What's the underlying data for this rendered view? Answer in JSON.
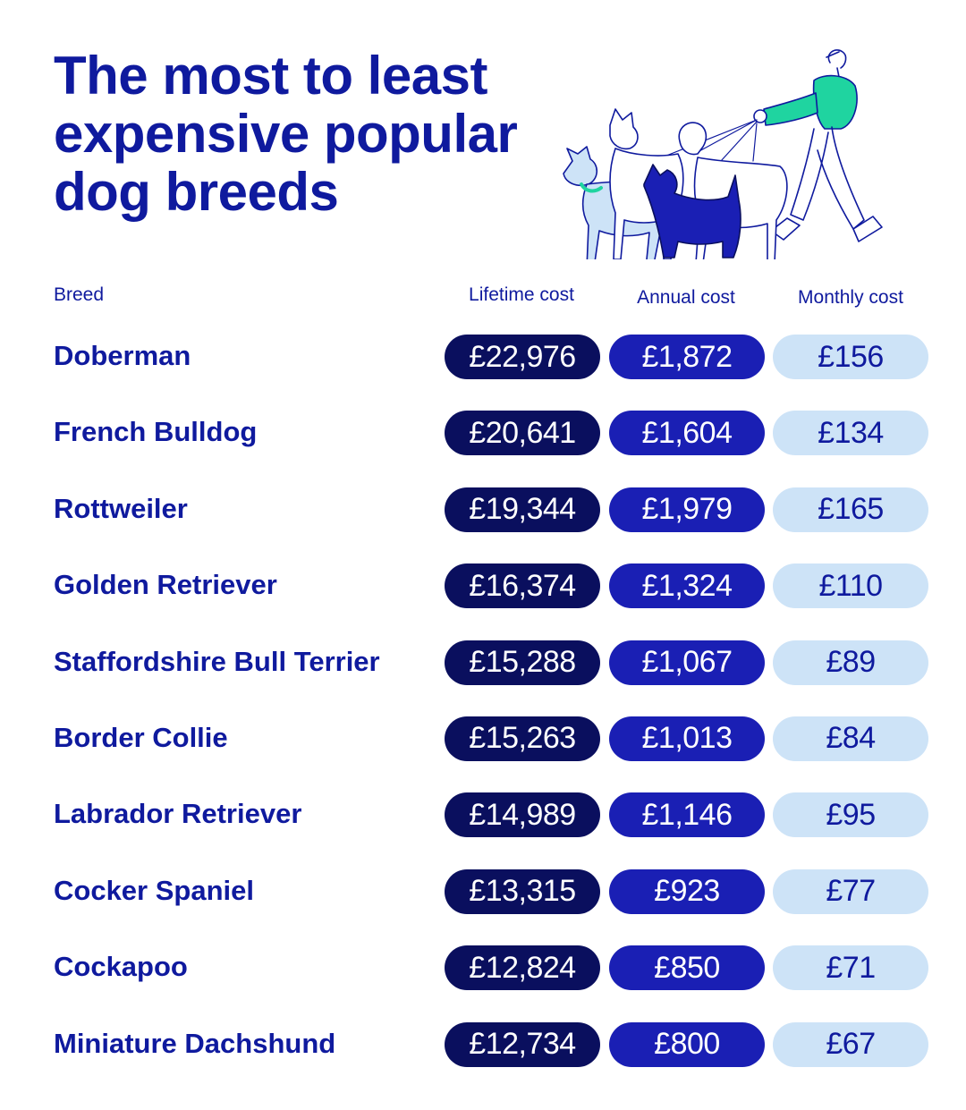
{
  "title_lines": [
    "The most to least",
    "expensive popular",
    "dog breeds"
  ],
  "columns": {
    "breed": "Breed",
    "lifetime": "Lifetime cost",
    "annual": "Annual cost",
    "monthly": "Monthly cost"
  },
  "chart_data": {
    "type": "table",
    "title": "The most to least expensive popular dog breeds",
    "columns": [
      "Breed",
      "Lifetime cost",
      "Annual cost",
      "Monthly cost"
    ],
    "rows": [
      {
        "breed": "Doberman",
        "lifetime": "£22,976",
        "annual": "£1,872",
        "monthly": "£156"
      },
      {
        "breed": "French Bulldog",
        "lifetime": "£20,641",
        "annual": "£1,604",
        "monthly": "£134"
      },
      {
        "breed": "Rottweiler",
        "lifetime": "£19,344",
        "annual": "£1,979",
        "monthly": "£165"
      },
      {
        "breed": "Golden Retriever",
        "lifetime": "£16,374",
        "annual": "£1,324",
        "monthly": "£110"
      },
      {
        "breed": "Staffordshire Bull Terrier",
        "lifetime": "£15,288",
        "annual": "£1,067",
        "monthly": "£89"
      },
      {
        "breed": "Border Collie",
        "lifetime": "£15,263",
        "annual": "£1,013",
        "monthly": "£84"
      },
      {
        "breed": "Labrador Retriever",
        "lifetime": "£14,989",
        "annual": "£1,146",
        "monthly": "£95"
      },
      {
        "breed": "Cocker Spaniel",
        "lifetime": "£13,315",
        "annual": "£923",
        "monthly": "£77"
      },
      {
        "breed": "Cockapoo",
        "lifetime": "£12,824",
        "annual": "£850",
        "monthly": "£71"
      },
      {
        "breed": "Miniature Dachshund",
        "lifetime": "£12,734",
        "annual": "£800",
        "monthly": "£67"
      }
    ]
  },
  "colors": {
    "text": "#0f1a9e",
    "lifetime_pill": "#0a0f5e",
    "annual_pill": "#1a1fb4",
    "monthly_pill": "#cde3f7",
    "accent": "#1fd4a0"
  },
  "illustration": "person-walking-four-dogs"
}
